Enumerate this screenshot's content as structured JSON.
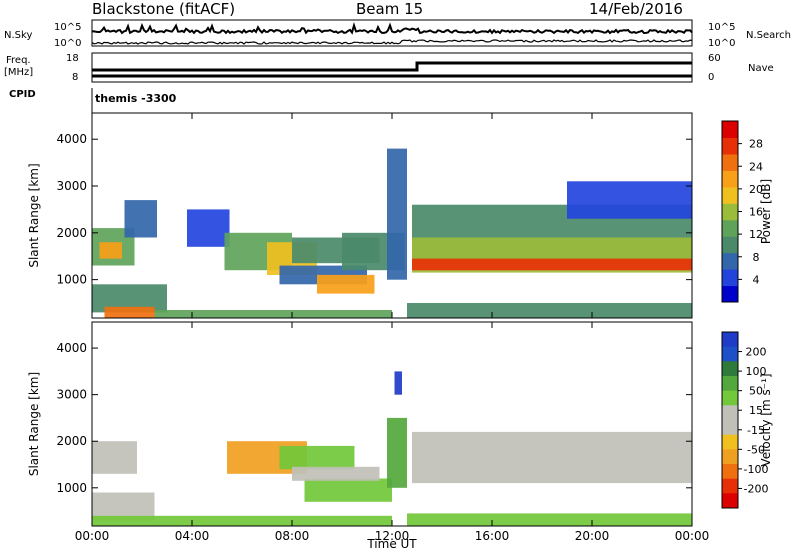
{
  "header": {
    "station": "Blackstone (fitACF)",
    "beam": "Beam 15",
    "date": "14/Feb/2016"
  },
  "summary_panels": {
    "nsky_label": "N.Sky",
    "nsearch_label": "N.Search",
    "noise_ticks": [
      "10^5",
      "10^0"
    ],
    "noise_ticks_right": [
      "10^5",
      "10^0"
    ],
    "freq_label": "Freq.",
    "freq_unit": "[MHz]",
    "freq_ticks": [
      "18",
      "8"
    ],
    "nave_label": "Nave",
    "nave_ticks": [
      "60",
      "0"
    ],
    "cpid_label": "CPID",
    "cpid_value": "themis -3300"
  },
  "chart_data": [
    {
      "type": "heatmap",
      "title": "Power",
      "ylabel": "Slant Range [km]",
      "xlabel": "Time UT",
      "x_ticks": [
        "00:00",
        "04:00",
        "08:00",
        "12:00",
        "16:00",
        "20:00",
        "00:00"
      ],
      "y_ticks": [
        1000,
        2000,
        3000,
        4000
      ],
      "ylim": [
        180,
        4560
      ],
      "xlim": [
        0,
        24
      ],
      "colorbar": {
        "label": "Power [dB]",
        "ticks": [
          4,
          8,
          12,
          16,
          20,
          24,
          28
        ],
        "range": [
          0,
          32
        ],
        "colors": [
          "#0000cc",
          "#2244dd",
          "#3366aa",
          "#4a8a6a",
          "#5fa35a",
          "#9bbb3a",
          "#f0c020",
          "#f8a018",
          "#f07010",
          "#e83008",
          "#dd0000"
        ]
      },
      "bands": [
        {
          "t0": 0.0,
          "t1": 1.7,
          "r_lo": 1300,
          "r_hi": 2100,
          "p": 13
        },
        {
          "t0": 0.3,
          "t1": 1.2,
          "r_lo": 1450,
          "r_hi": 1800,
          "p": 21
        },
        {
          "t0": 1.3,
          "t1": 2.6,
          "r_lo": 1900,
          "r_hi": 2700,
          "p": 6
        },
        {
          "t0": 0.0,
          "t1": 3.0,
          "r_lo": 300,
          "r_hi": 900,
          "p": 10
        },
        {
          "t0": 0.5,
          "t1": 2.5,
          "r_lo": 180,
          "r_hi": 420,
          "p": 24
        },
        {
          "t0": 2.5,
          "t1": 12.0,
          "r_lo": 180,
          "r_hi": 350,
          "p": 12
        },
        {
          "t0": 3.8,
          "t1": 5.5,
          "r_lo": 1700,
          "r_hi": 2500,
          "p": 5
        },
        {
          "t0": 5.3,
          "t1": 8.0,
          "r_lo": 1200,
          "r_hi": 2000,
          "p": 14
        },
        {
          "t0": 7.0,
          "t1": 9.0,
          "r_lo": 1100,
          "r_hi": 1800,
          "p": 18
        },
        {
          "t0": 8.0,
          "t1": 11.5,
          "r_lo": 1350,
          "r_hi": 1900,
          "p": 9
        },
        {
          "t0": 7.5,
          "t1": 11.0,
          "r_lo": 900,
          "r_hi": 1300,
          "p": 8
        },
        {
          "t0": 9.0,
          "t1": 11.3,
          "r_lo": 700,
          "r_hi": 1100,
          "p": 22
        },
        {
          "t0": 10.0,
          "t1": 12.5,
          "r_lo": 1200,
          "r_hi": 2000,
          "p": 10
        },
        {
          "t0": 11.8,
          "t1": 12.6,
          "r_lo": 1000,
          "r_hi": 3800,
          "p": 7
        },
        {
          "t0": 12.8,
          "t1": 24.0,
          "r_lo": 1300,
          "r_hi": 2600,
          "p": 10
        },
        {
          "t0": 12.8,
          "t1": 24.0,
          "r_lo": 1150,
          "r_hi": 1900,
          "p": 17
        },
        {
          "t0": 12.8,
          "t1": 24.0,
          "r_lo": 1200,
          "r_hi": 1450,
          "p": 27
        },
        {
          "t0": 19.0,
          "t1": 24.0,
          "r_lo": 2300,
          "r_hi": 3100,
          "p": 5
        },
        {
          "t0": 12.6,
          "t1": 24.0,
          "r_lo": 180,
          "r_hi": 500,
          "p": 9
        }
      ]
    },
    {
      "type": "heatmap",
      "title": "Velocity",
      "ylabel": "Slant Range [km]",
      "xlabel": "Time UT",
      "x_ticks": [
        "00:00",
        "04:00",
        "08:00",
        "12:00",
        "16:00",
        "20:00",
        "00:00"
      ],
      "y_ticks": [
        1000,
        2000,
        3000,
        4000
      ],
      "ylim": [
        180,
        4560
      ],
      "xlim": [
        0,
        24
      ],
      "colorbar": {
        "label": "Velocity [m s⁻¹]",
        "ticks": [
          "200",
          "100",
          "50",
          "15",
          "-15",
          "-50",
          "-100",
          "-200"
        ],
        "colors": [
          "#1e3cc8",
          "#1e50c8",
          "#2d7a3a",
          "#52a83c",
          "#72c83a",
          "#c0c0b8",
          "#c0c0b8",
          "#f0c020",
          "#f0a020",
          "#f07010",
          "#e83008",
          "#dd0000"
        ]
      },
      "bands": [
        {
          "t0": 0.0,
          "t1": 1.8,
          "r_lo": 1300,
          "r_hi": 2000,
          "v": 0
        },
        {
          "t0": 0.0,
          "t1": 2.5,
          "r_lo": 300,
          "r_hi": 900,
          "v": 0
        },
        {
          "t0": 0.0,
          "t1": 12.0,
          "r_lo": 180,
          "r_hi": 400,
          "v": 30
        },
        {
          "t0": 5.4,
          "t1": 8.6,
          "r_lo": 1300,
          "r_hi": 2000,
          "v": -60
        },
        {
          "t0": 7.5,
          "t1": 10.5,
          "r_lo": 1400,
          "r_hi": 1900,
          "v": 30
        },
        {
          "t0": 8.5,
          "t1": 12.0,
          "r_lo": 700,
          "r_hi": 1200,
          "v": 40
        },
        {
          "t0": 8.0,
          "t1": 11.5,
          "r_lo": 1150,
          "r_hi": 1450,
          "v": 0
        },
        {
          "t0": 11.8,
          "t1": 12.6,
          "r_lo": 1000,
          "r_hi": 2500,
          "v": 60
        },
        {
          "t0": 12.1,
          "t1": 12.4,
          "r_lo": 3000,
          "r_hi": 3500,
          "v": 200
        },
        {
          "t0": 12.8,
          "t1": 24.0,
          "r_lo": 1100,
          "r_hi": 2200,
          "v": 0
        },
        {
          "t0": 12.6,
          "t1": 24.0,
          "r_lo": 180,
          "r_hi": 450,
          "v": 20
        }
      ]
    }
  ]
}
